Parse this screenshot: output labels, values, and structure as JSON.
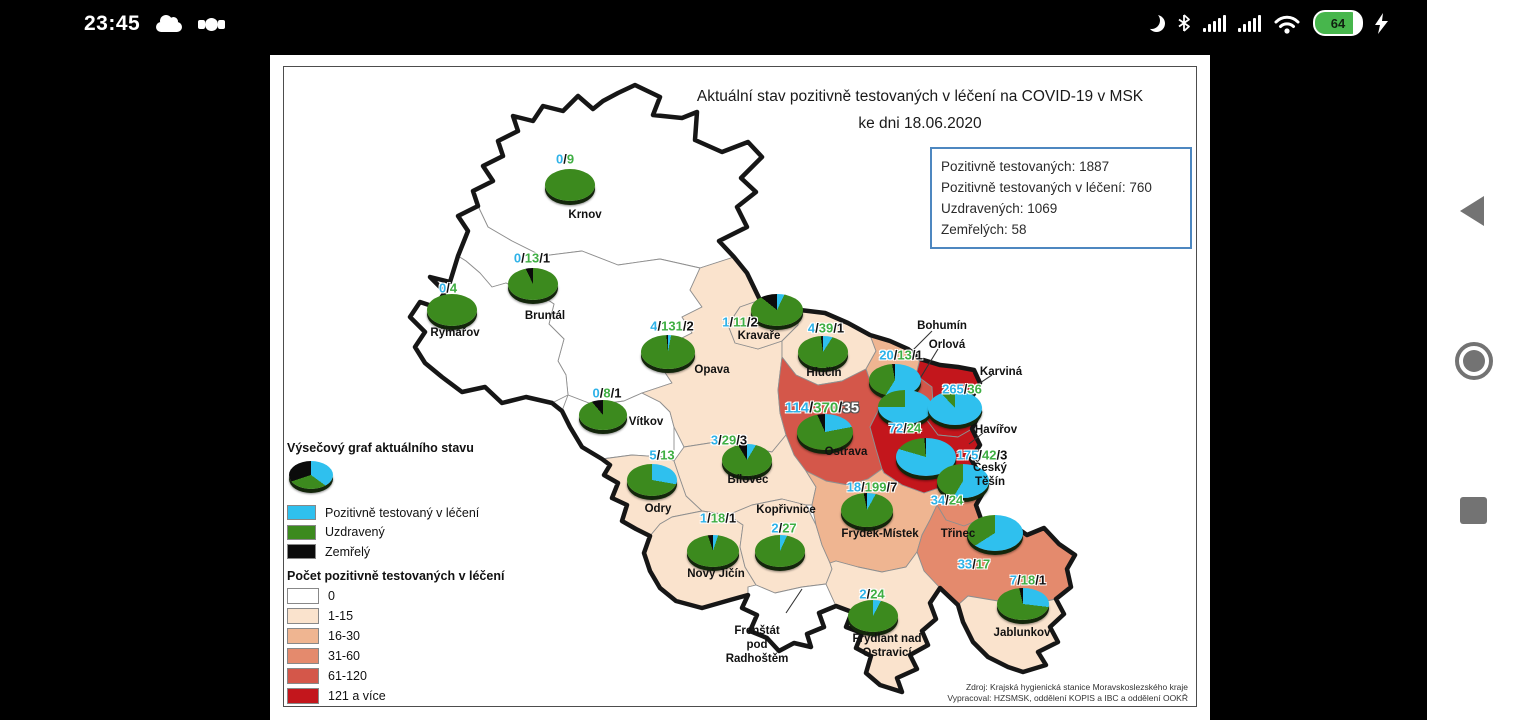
{
  "status_bar": {
    "time": "23:45",
    "left_icons": [
      "cloud-icon",
      "eye-icon"
    ],
    "right_icons": [
      "moon-icon",
      "bluetooth-icon",
      "signal-icon",
      "signal-icon",
      "wifi-icon",
      "battery-indicator",
      "charging-bolt-icon"
    ],
    "battery_percent": "64"
  },
  "nav_bar": {
    "items": [
      "back",
      "home",
      "recents"
    ]
  },
  "map": {
    "title_line1": "Aktuální stav pozitivně testovaných v léčení na COVID-19 v MSK",
    "title_line2": "ke dni 18.06.2020",
    "summary_box": {
      "lines": [
        "Pozitivně testovaných: 1887",
        "Pozitivně testovaných v léčení: 760",
        "Uzdravených: 1069",
        "Zemřelých: 58"
      ]
    },
    "legend": {
      "pie_title": "Výsečový graf aktuálního stavu",
      "pie_items": [
        {
          "label": "Pozitivně testovaný v léčení",
          "color": "#2fc0ee"
        },
        {
          "label": "Uzdravený",
          "color": "#3c8a1e"
        },
        {
          "label": "Zemřelý",
          "color": "#0b0b0b"
        }
      ],
      "choropleth_title": "Počet pozitivně testovaných v léčení",
      "classes": [
        {
          "label": "0",
          "color": "#ffffff"
        },
        {
          "label": "1-15",
          "color": "#fae3cd"
        },
        {
          "label": "16-30",
          "color": "#efb591"
        },
        {
          "label": "31-60",
          "color": "#e48a6d"
        },
        {
          "label": "61-120",
          "color": "#d4574a"
        },
        {
          "label": "121 a více",
          "color": "#c3161c"
        }
      ]
    },
    "source_line1": "Zdroj: Krajská hygienická stanice Moravskoslezského kraje",
    "source_line2": "Vypracoval: HZSMSK, oddělení KOPIS a IBC a oddělení OOKŘ"
  },
  "chart_data": {
    "type": "choropleth-map-with-pies",
    "region": "Moravskoslezský kraj (MSK)",
    "date": "18.06.2020",
    "value_format": "pozitivní v léčení / uzdravení / zemřelí",
    "towns": [
      {
        "key": "krnov",
        "name": "Krnov",
        "label": "Krnov",
        "level": 0,
        "treating": 0,
        "recovered": 9,
        "deaths": null,
        "nums": [
          295,
          104
        ],
        "pie": [
          300,
          130
        ],
        "rx": 25,
        "ry": 16,
        "label_pos": [
          315,
          160
        ]
      },
      {
        "key": "bruntal",
        "name": "Bruntál",
        "label": "Bruntál",
        "level": 0,
        "treating": 0,
        "recovered": 13,
        "deaths": 1,
        "nums": [
          262,
          203
        ],
        "pie": [
          263,
          229
        ],
        "rx": 25,
        "ry": 16,
        "label_pos": [
          275,
          261
        ]
      },
      {
        "key": "rymarov",
        "name": "Rýmařov",
        "label": "Rýmařov",
        "level": 0,
        "treating": 0,
        "recovered": 4,
        "deaths": null,
        "nums": [
          178,
          233
        ],
        "pie": [
          182,
          255
        ],
        "rx": 25,
        "ry": 16,
        "label_pos": [
          185,
          278
        ]
      },
      {
        "key": "vitkov",
        "name": "Vítkov",
        "label": "Vítkov",
        "level": 0,
        "treating": 0,
        "recovered": 8,
        "deaths": 1,
        "nums": [
          337,
          338
        ],
        "pie": [
          333,
          360
        ],
        "rx": 24,
        "ry": 15,
        "label_pos": [
          376,
          367
        ]
      },
      {
        "key": "opava",
        "name": "Opava",
        "label": "Opava",
        "level": 1,
        "treating": 4,
        "recovered": 131,
        "deaths": 2,
        "nums": [
          402,
          271
        ],
        "pie": [
          398,
          297
        ],
        "rx": 27,
        "ry": 17,
        "label_pos": [
          442,
          315
        ]
      },
      {
        "key": "kravare",
        "name": "Kravaře",
        "label": "Kravaře",
        "level": 1,
        "treating": 1,
        "recovered": 11,
        "deaths": 2,
        "nums": [
          470,
          267
        ],
        "pie": [
          507,
          255
        ],
        "rx": 26,
        "ry": 16,
        "label_pos": [
          489,
          281
        ]
      },
      {
        "key": "hlucin",
        "name": "Hlučín",
        "label": "Hlučín",
        "level": 1,
        "treating": 4,
        "recovered": 39,
        "deaths": 1,
        "nums": [
          556,
          273
        ],
        "pie": [
          553,
          297
        ],
        "rx": 25,
        "ry": 16,
        "label_pos": [
          554,
          318
        ]
      },
      {
        "key": "bohumin",
        "name": "Bohumín",
        "label": "Bohumín",
        "level": 2,
        "treating": 20,
        "recovered": 13,
        "deaths": 1,
        "nums": [
          631,
          300
        ],
        "pie": [
          625,
          325
        ],
        "rx": 26,
        "ry": 16,
        "label_pos": [
          672,
          271
        ]
      },
      {
        "key": "orlova",
        "name": "Orlová",
        "label": "Orlová",
        "level": 4,
        "treating": 72,
        "recovered": 24,
        "deaths": null,
        "nums": [
          635,
          373
        ],
        "pie": [
          635,
          352
        ],
        "rx": 27,
        "ry": 17,
        "label_pos": [
          677,
          290
        ]
      },
      {
        "key": "karvina",
        "name": "Karviná",
        "label": "Karviná",
        "level": 5,
        "treating": 265,
        "recovered": 36,
        "deaths": null,
        "nums": [
          692,
          334
        ],
        "pie": [
          685,
          353
        ],
        "rx": 27,
        "ry": 17,
        "label_pos": [
          731,
          317
        ]
      },
      {
        "key": "havirov",
        "name": "Havířov",
        "label": "Havířov",
        "level": 5,
        "treating": 175,
        "recovered": 42,
        "deaths": 3,
        "nums": [
          712,
          400
        ],
        "pie": [
          656,
          402
        ],
        "rx": 30,
        "ry": 19,
        "label_pos": [
          726,
          375
        ]
      },
      {
        "key": "cesky-tesin",
        "name": "Český Těšín",
        "label": "Český\nTěšín",
        "level": 3,
        "treating": 34,
        "recovered": 24,
        "deaths": null,
        "nums": [
          677,
          445
        ],
        "pie": [
          693,
          426
        ],
        "rx": 26,
        "ry": 17,
        "label_pos": [
          720,
          420
        ]
      },
      {
        "key": "trinec",
        "name": "Třinec",
        "label": "Třinec",
        "level": 3,
        "treating": 33,
        "recovered": 17,
        "deaths": null,
        "nums": [
          704,
          509
        ],
        "pie": [
          725,
          478
        ],
        "rx": 28,
        "ry": 18,
        "label_pos": [
          688,
          479
        ]
      },
      {
        "key": "jablunkov",
        "name": "Jablunkov",
        "label": "Jablunkov",
        "level": 1,
        "treating": 7,
        "recovered": 18,
        "deaths": 1,
        "nums": [
          758,
          525
        ],
        "pie": [
          753,
          549
        ],
        "rx": 26,
        "ry": 16,
        "label_pos": [
          752,
          578
        ]
      },
      {
        "key": "ostrava",
        "name": "Ostrava",
        "label": "Ostrava",
        "level": 4,
        "treating": 114,
        "recovered": 370,
        "deaths": 35,
        "big": true,
        "death_white": true,
        "nums": [
          552,
          353
        ],
        "pie": [
          555,
          377
        ],
        "rx": 28,
        "ry": 18,
        "label_pos": [
          576,
          397
        ]
      },
      {
        "key": "frydek-mistek",
        "name": "Frýdek-Místek",
        "label": "Frýdek-Místek",
        "level": 2,
        "treating": 18,
        "recovered": 199,
        "deaths": 7,
        "nums": [
          602,
          432
        ],
        "pie": [
          597,
          455
        ],
        "rx": 26,
        "ry": 17,
        "label_pos": [
          610,
          479
        ]
      },
      {
        "key": "koprivnice",
        "name": "Kopřivnice",
        "label": "Kopřivnice",
        "level": 1,
        "treating": 2,
        "recovered": 27,
        "deaths": null,
        "nums": [
          514,
          473
        ],
        "pie": [
          510,
          496
        ],
        "rx": 25,
        "ry": 16,
        "label_pos": [
          516,
          455
        ]
      },
      {
        "key": "novy-jicin",
        "name": "Nový Jičín",
        "label": "Nový Jičín",
        "level": 1,
        "treating": 1,
        "recovered": 18,
        "deaths": 1,
        "nums": [
          448,
          463
        ],
        "pie": [
          443,
          496
        ],
        "rx": 26,
        "ry": 16,
        "label_pos": [
          446,
          519
        ]
      },
      {
        "key": "bilovec",
        "name": "Bílovec",
        "label": "Bílovec",
        "level": 1,
        "treating": 3,
        "recovered": 29,
        "deaths": 3,
        "nums": [
          459,
          385
        ],
        "pie": [
          477,
          405
        ],
        "rx": 25,
        "ry": 16,
        "label_pos": [
          478,
          425
        ]
      },
      {
        "key": "odry",
        "name": "Odry",
        "label": "Odry",
        "level": 1,
        "treating": 5,
        "recovered": 13,
        "deaths": null,
        "nums": [
          392,
          400
        ],
        "pie": [
          382,
          425
        ],
        "rx": 25,
        "ry": 16,
        "label_pos": [
          388,
          454
        ]
      },
      {
        "key": "frenstat",
        "name": "Frenštát pod Radhoštěm",
        "label": "Frenštát\npod\nRadhoštěm",
        "level": 0,
        "treating": null,
        "recovered": null,
        "deaths": null,
        "label_pos": [
          487,
          590
        ]
      },
      {
        "key": "frydlant",
        "name": "Frýdlant nad Ostravicí",
        "label": "Frýdlant nad\nOstravicí",
        "level": 1,
        "treating": 2,
        "recovered": 24,
        "deaths": null,
        "nums": [
          602,
          539
        ],
        "pie": [
          603,
          561
        ],
        "rx": 25,
        "ry": 16,
        "label_pos": [
          617,
          591
        ]
      }
    ]
  }
}
